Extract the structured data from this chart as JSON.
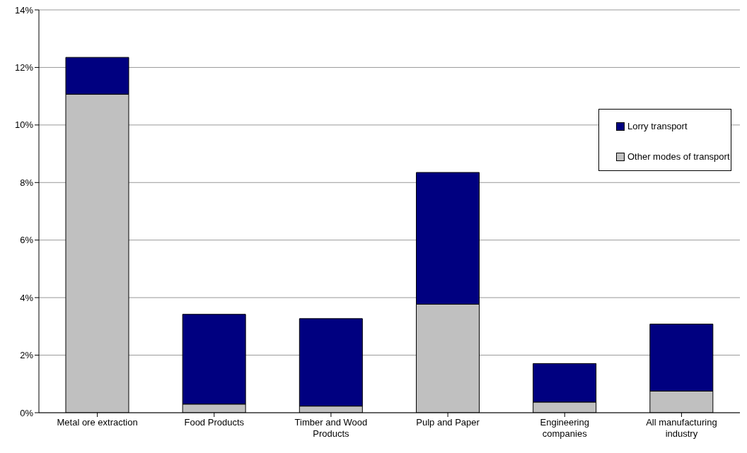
{
  "chart_data": {
    "type": "bar",
    "stacked": true,
    "categories": [
      "Metal ore extraction",
      "Food Products",
      "Timber and Wood Products",
      "Pulp and Paper",
      "Engineering companies",
      "All manufacturing industry"
    ],
    "series": [
      {
        "name": "Other modes of transport",
        "color": "#c0c0c0",
        "values": [
          11.07,
          0.3,
          0.23,
          3.77,
          0.37,
          0.75
        ]
      },
      {
        "name": "Lorry transport",
        "color": "#000080",
        "values": [
          1.28,
          3.12,
          3.04,
          4.58,
          1.34,
          2.33
        ]
      }
    ],
    "ylim": [
      0,
      14
    ],
    "yticks": [
      {
        "value": 0,
        "label": "0%"
      },
      {
        "value": 2,
        "label": "2%"
      },
      {
        "value": 4,
        "label": "4%"
      },
      {
        "value": 6,
        "label": "6%"
      },
      {
        "value": 8,
        "label": "8%"
      },
      {
        "value": 10,
        "label": "10%"
      },
      {
        "value": 12,
        "label": "12%"
      },
      {
        "value": 14,
        "label": "14%"
      }
    ],
    "grid": "y",
    "legend": "top right"
  }
}
